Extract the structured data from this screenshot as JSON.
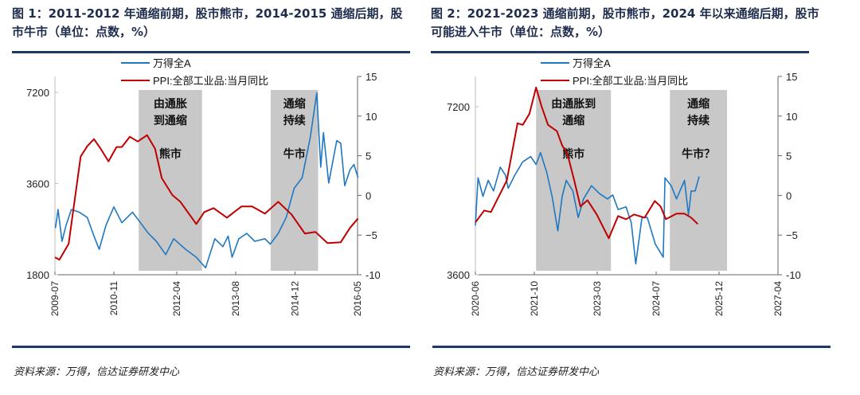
{
  "titles": [
    "图 1：2011-2012 年通缩前期，股市熊市，2014-2015 通缩后期，股市牛市（单位：点数，%）",
    "图 2：2021-2023 通缩前期，股市熊市，2024 年以来通缩后期，股市可能进入牛市（单位：点数，%）"
  ],
  "source": [
    "资料来源：万得，信达证券研发中心",
    "资料来源：万得，信达证券研发中心"
  ],
  "colors": {
    "blue": "#1f78c1",
    "red": "#c00000",
    "shade": "#c8c8c8",
    "rule": "#1f3864"
  },
  "chart_data": [
    {
      "type": "line",
      "legend": [
        "万得全A",
        "PPI:全部工业品:当月同比"
      ],
      "x_range": [
        2009.5,
        2016.33
      ],
      "x_ticks": [
        2009.5,
        2010.83,
        2012.25,
        2013.58,
        2014.92,
        2016.33
      ],
      "x_tick_labels": [
        "2009-07",
        "2010-11",
        "2012-04",
        "2013-08",
        "2014-12",
        "2016-05"
      ],
      "y_left": {
        "scale": "log",
        "range": [
          1800,
          7200
        ],
        "ticks": [
          1800,
          3600,
          7200
        ],
        "tick_labels": [
          "1800",
          "3600",
          "7200"
        ]
      },
      "y_right": {
        "range": [
          -10,
          15
        ],
        "ticks": [
          -10,
          -5,
          0,
          5,
          10,
          15
        ],
        "tick_labels": [
          "-10",
          "−5",
          "0",
          "5",
          "10",
          "15"
        ]
      },
      "shaded": [
        {
          "from": 2011.39,
          "to": 2012.82,
          "lines": [
            "由通胀",
            "到通缩",
            "",
            "熊市"
          ]
        },
        {
          "from": 2014.37,
          "to": 2015.44,
          "lines": [
            "通缩",
            "持续",
            "",
            "牛市"
          ]
        }
      ],
      "series": [
        {
          "name": "万得全A",
          "axis": "left",
          "x": [
            2009.51,
            2009.57,
            2009.66,
            2009.75,
            2009.87,
            2010.05,
            2010.23,
            2010.38,
            2010.5,
            2010.65,
            2010.83,
            2011.01,
            2011.25,
            2011.43,
            2011.61,
            2011.79,
            2012.0,
            2012.18,
            2012.45,
            2012.69,
            2012.9,
            2013.11,
            2013.29,
            2013.41,
            2013.5,
            2013.65,
            2013.83,
            2014.01,
            2014.24,
            2014.36,
            2014.54,
            2014.72,
            2014.9,
            2015.08,
            2015.26,
            2015.41,
            2015.5,
            2015.56,
            2015.68,
            2015.86,
            2015.95,
            2016.04,
            2016.16,
            2016.25,
            2016.34
          ],
          "values": [
            2566,
            2955,
            2321,
            2619,
            2955,
            2896,
            2781,
            2416,
            2184,
            2619,
            3015,
            2672,
            2896,
            2672,
            2464,
            2321,
            2098,
            2367,
            2184,
            2056,
            1897,
            2367,
            2229,
            2416,
            2056,
            2367,
            2464,
            2321,
            2367,
            2273,
            2464,
            2781,
            3472,
            3764,
            5091,
            7170,
            4079,
            5301,
            3615,
            4990,
            4891,
            3543,
            3998,
            4162,
            3764
          ]
        },
        {
          "name": "PPI:全部工业品:当月同比",
          "axis": "right",
          "x": [
            2009.5,
            2009.6,
            2009.81,
            2009.96,
            2010.08,
            2010.23,
            2010.38,
            2010.53,
            2010.71,
            2010.89,
            2011.01,
            2011.19,
            2011.37,
            2011.58,
            2011.76,
            2011.91,
            2012.15,
            2012.33,
            2012.69,
            2012.87,
            2013.08,
            2013.38,
            2013.71,
            2013.95,
            2014.24,
            2014.54,
            2014.84,
            2015.14,
            2015.38,
            2015.65,
            2015.95,
            2016.16,
            2016.34
          ],
          "values": [
            -7.8,
            -8.1,
            -6.1,
            0,
            4.9,
            6.2,
            7.1,
            5.9,
            4.3,
            6.1,
            6.1,
            7.4,
            6.8,
            7.6,
            5.9,
            2.2,
            0.05,
            -0.8,
            -3.6,
            -2.1,
            -1.6,
            -2.8,
            -1.4,
            -1.4,
            -2.3,
            -0.8,
            -2.4,
            -4.8,
            -4.6,
            -6.0,
            -5.9,
            -4.1,
            -2.9
          ]
        }
      ]
    },
    {
      "type": "line",
      "legend": [
        "万得全A",
        "PPI:全部工业品:当月同比"
      ],
      "x_range": [
        2020.42,
        2027.25
      ],
      "x_ticks": [
        2020.42,
        2021.75,
        2023.17,
        2024.5,
        2025.92,
        2027.25
      ],
      "x_tick_labels": [
        "2020-06",
        "2021-10",
        "2023-03",
        "2024-07",
        "2025-12",
        "2027-04"
      ],
      "y_left": {
        "scale": "log",
        "range": [
          3600,
          7200
        ],
        "ticks": [
          3600,
          7200
        ],
        "tick_labels": [
          "3600",
          "7200"
        ]
      },
      "y_right": {
        "range": [
          -10,
          15
        ],
        "ticks": [
          -10,
          -5,
          0,
          5,
          10,
          15
        ],
        "tick_labels": [
          "-10",
          "−5",
          "0",
          "5",
          "10",
          "15"
        ]
      },
      "shaded": [
        {
          "from": 2021.79,
          "to": 2023.48,
          "lines": [
            "由通胀到",
            "通缩",
            "",
            "熊市"
          ]
        },
        {
          "from": 2024.81,
          "to": 2026.1,
          "lines": [
            "通缩",
            "持续",
            "",
            "牛市？"
          ]
        }
      ],
      "series": [
        {
          "name": "万得全A",
          "axis": "left",
          "x": [
            2020.42,
            2020.48,
            2020.59,
            2020.71,
            2020.83,
            2020.98,
            2021.1,
            2021.16,
            2021.31,
            2021.49,
            2021.67,
            2021.79,
            2021.89,
            2022.03,
            2022.15,
            2022.28,
            2022.38,
            2022.47,
            2022.62,
            2022.74,
            2022.86,
            2023.04,
            2023.22,
            2023.4,
            2023.52,
            2023.64,
            2023.82,
            2023.94,
            2024.04,
            2024.18,
            2024.3,
            2024.48,
            2024.66,
            2024.7,
            2024.84,
            2024.96,
            2025.14,
            2025.23,
            2025.29,
            2025.38,
            2025.47
          ],
          "values": [
            4411,
            5371,
            4976,
            5314,
            5086,
            5611,
            5430,
            5142,
            5430,
            5736,
            5861,
            5673,
            5959,
            5490,
            4976,
            4316,
            4976,
            5314,
            5086,
            4559,
            4921,
            5197,
            5031,
            4921,
            5003,
            4711,
            4763,
            4460,
            3765,
            4559,
            4559,
            4087,
            3871,
            5371,
            5197,
            4921,
            5314,
            4608,
            5086,
            5086,
            5400
          ]
        },
        {
          "name": "PPI:全部工业品:当月同比",
          "axis": "right",
          "x": [
            2020.42,
            2020.62,
            2020.77,
            2020.95,
            2021.13,
            2021.37,
            2021.49,
            2021.64,
            2021.79,
            2021.91,
            2022.06,
            2022.26,
            2022.38,
            2022.5,
            2022.65,
            2022.79,
            2022.95,
            2023.16,
            2023.43,
            2023.64,
            2023.82,
            2024.0,
            2024.24,
            2024.47,
            2024.6,
            2024.72,
            2024.96,
            2025.14,
            2025.29,
            2025.44
          ],
          "values": [
            -3.4,
            -1.9,
            -2.1,
            -0.1,
            1.9,
            9.1,
            8.9,
            10.3,
            13.6,
            11.3,
            8.9,
            8.1,
            6.3,
            5.2,
            1.9,
            -1.4,
            -0.6,
            -2.4,
            -5.4,
            -2.6,
            -3.0,
            -2.4,
            -2.8,
            -0.7,
            -1.4,
            -3.0,
            -2.3,
            -2.3,
            -2.8,
            -3.6
          ]
        }
      ]
    }
  ]
}
